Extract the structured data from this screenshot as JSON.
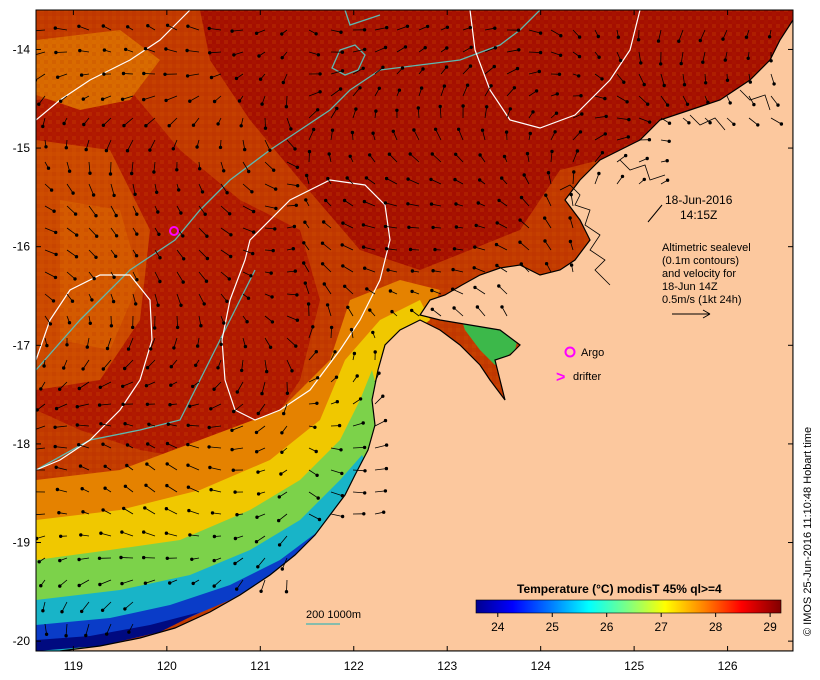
{
  "map": {
    "lon_ticks": [
      "119",
      "120",
      "121",
      "122",
      "123",
      "124",
      "125",
      "126"
    ],
    "lat_ticks": [
      "-14",
      "-15",
      "-16",
      "-17",
      "-18",
      "-19",
      "-20"
    ],
    "lon_range": [
      118.6,
      126.7
    ],
    "lat_range": [
      -20.1,
      -13.6
    ],
    "colors": {
      "land": "#fcc89e",
      "warm": "#a50f00",
      "ocean_mid": "#cc4a00",
      "coastline": "#000000",
      "contour_sealevel": "#ffffff",
      "contour_isobath": "#5fb8b0",
      "marker": "#ff00ff"
    }
  },
  "annotations": {
    "date": "18-Jun-2016",
    "time": "14:15Z",
    "altimetry_line1": "Altimetric sealevel",
    "altimetry_line2": "(0.1m contours)",
    "altimetry_line3": "and velocity for",
    "altimetry_line4": "18-Jun 14Z",
    "altimetry_line5": "0.5m/s (1kt 24h)",
    "argo_label": "Argo",
    "drifter_label": "drifter",
    "drifter_symbol": ">",
    "isobath_label": "200  1000m",
    "credit": "© IMOS 25-Jun-2016 11:10:48 Hobart time"
  },
  "colorbar": {
    "title": "Temperature (°C) modisT 45% ql>=4",
    "ticks": [
      "24",
      "25",
      "26",
      "27",
      "28",
      "29"
    ],
    "range": [
      23.6,
      29.2
    ],
    "stops": [
      "#00008f",
      "#0000ff",
      "#0080ff",
      "#00ffff",
      "#80ff80",
      "#ffff00",
      "#ff8000",
      "#ff0000",
      "#800000"
    ]
  }
}
